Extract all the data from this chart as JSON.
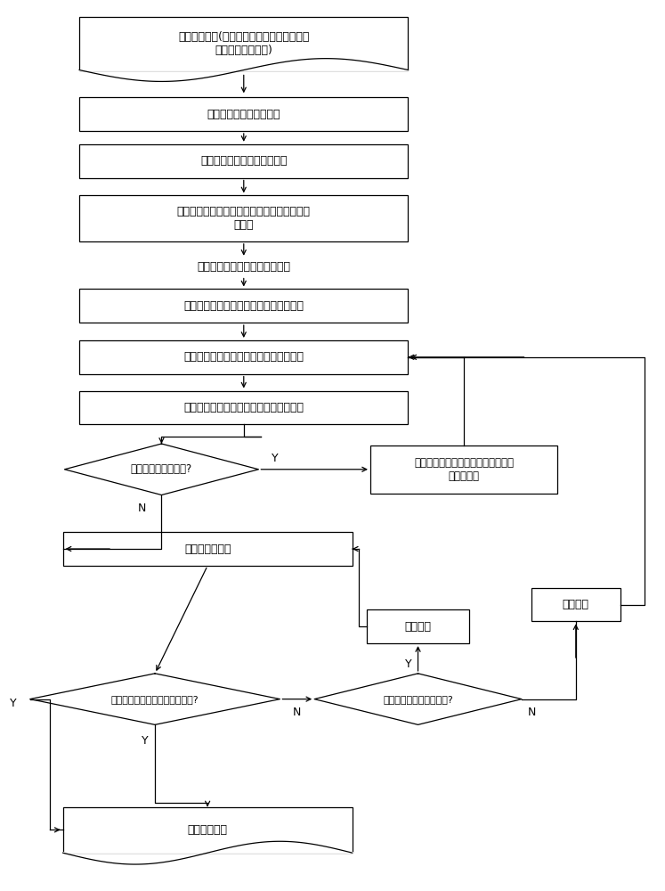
{
  "bg_color": "#ffffff",
  "line_color": "#000000",
  "text_color": "#000000",
  "font_size": 9,
  "db_top_text": "生产实绩信息(客户产品信息、中间包使用次\n数、坩埚使用次数)",
  "box1_text": "按照客户产品交货期排序",
  "box2_text": "相同交货期，按照优先级排序",
  "box3_text": "相同交货期，相同优先级，按照客户产品生产\n量排序",
  "label1_text": "排序后的甩带工序客户产品信息",
  "box4_text": "选择排序后第一条客户产品，获取牌号值",
  "box5_text": "基于规则设定甩带炉次的炉重并进行组炉",
  "box6_text": "更新中间包使用次数、坩埚使用次数信息",
  "dia1_text": "有无未安排客户产品?",
  "box7_text": "选择队列中的下一条客户产品，并获\n取牌号的值",
  "box8_text": "计算牌号备料量",
  "box9_text": "增加炉数",
  "box10_text": "调整炉重",
  "dia2_text": "是否满足该牌号库存备料上下限?",
  "dia3_text": "该牌号炉重为最大炉重么?",
  "db_bot_text": "组炉炉次信息"
}
